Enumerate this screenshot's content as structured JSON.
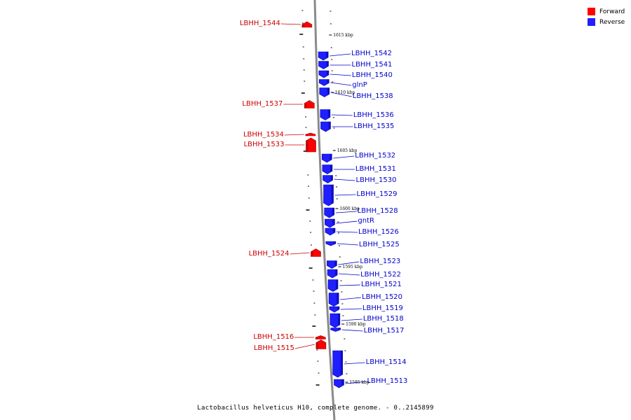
{
  "legend": {
    "forward_label": "Forward",
    "reverse_label": "Reverse",
    "forward_color": "#ff0000",
    "reverse_color": "#1f1fff"
  },
  "caption": "Lactobacillus helveticus H10, complete genome. - 0..2145899",
  "label_colors": {
    "forward": "#cc0000",
    "reverse": "#0000cc"
  },
  "kbp_marks": [
    "1615 kbp",
    "1610 kbp",
    "1605 kbp",
    "1600 kbp",
    "1595 kbp",
    "1590 kbp",
    "1585 kbp"
  ],
  "genes": [
    {
      "name": "LBHH_1544",
      "strand": "forward"
    },
    {
      "name": "LBHH_1542",
      "strand": "reverse"
    },
    {
      "name": "LBHH_1541",
      "strand": "reverse"
    },
    {
      "name": "LBHH_1540",
      "strand": "reverse"
    },
    {
      "name": "glnP",
      "strand": "reverse"
    },
    {
      "name": "LBHH_1538",
      "strand": "reverse"
    },
    {
      "name": "LBHH_1537",
      "strand": "forward"
    },
    {
      "name": "LBHH_1536",
      "strand": "reverse"
    },
    {
      "name": "LBHH_1535",
      "strand": "reverse"
    },
    {
      "name": "LBHH_1534",
      "strand": "forward"
    },
    {
      "name": "LBHH_1533",
      "strand": "forward"
    },
    {
      "name": "LBHH_1532",
      "strand": "reverse"
    },
    {
      "name": "LBHH_1531",
      "strand": "reverse"
    },
    {
      "name": "LBHH_1530",
      "strand": "reverse"
    },
    {
      "name": "LBHH_1529",
      "strand": "reverse"
    },
    {
      "name": "LBHH_1528",
      "strand": "reverse"
    },
    {
      "name": "gntR",
      "strand": "reverse"
    },
    {
      "name": "LBHH_1526",
      "strand": "reverse"
    },
    {
      "name": "LBHH_1525",
      "strand": "reverse"
    },
    {
      "name": "LBHH_1524",
      "strand": "forward"
    },
    {
      "name": "LBHH_1523",
      "strand": "reverse"
    },
    {
      "name": "LBHH_1522",
      "strand": "reverse"
    },
    {
      "name": "LBHH_1521",
      "strand": "reverse"
    },
    {
      "name": "LBHH_1520",
      "strand": "reverse"
    },
    {
      "name": "LBHH_1519",
      "strand": "reverse"
    },
    {
      "name": "LBHH_1518",
      "strand": "reverse"
    },
    {
      "name": "LBHH_1517",
      "strand": "reverse"
    },
    {
      "name": "LBHH_1516",
      "strand": "forward"
    },
    {
      "name": "LBHH_1515",
      "strand": "forward"
    },
    {
      "name": "LBHH_1514",
      "strand": "reverse"
    },
    {
      "name": "LBHH_1513",
      "strand": "reverse"
    }
  ]
}
